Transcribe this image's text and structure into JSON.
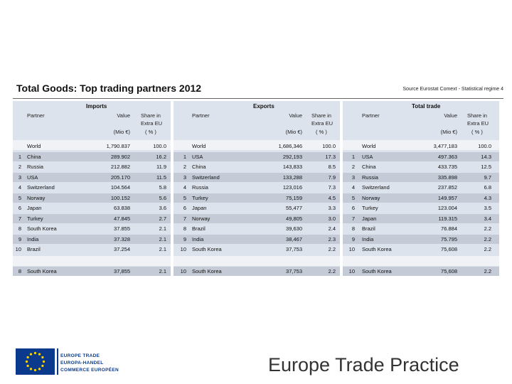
{
  "title": "Total Goods: Top trading partners 2012",
  "source": "Source Eurostat Comext - Statistical regime 4",
  "imports": {
    "heading": "Imports",
    "col_partner": "Partner",
    "col_value": "Value",
    "col_value_unit": "(Mio €)",
    "col_share_1": "Share in",
    "col_share_2": "Extra EU",
    "col_share_unit": "( % )",
    "world": {
      "rank": "",
      "partner": "World",
      "value": "1,790.837",
      "share": "100.0"
    },
    "rows": [
      {
        "rank": "1",
        "partner": "China",
        "value": "289.902",
        "share": "16.2"
      },
      {
        "rank": "2",
        "partner": "Russia",
        "value": "212.882",
        "share": "11.9"
      },
      {
        "rank": "3",
        "partner": "USA",
        "value": "205.170",
        "share": "11.5"
      },
      {
        "rank": "4",
        "partner": "Switzerland",
        "value": "104.564",
        "share": "5.8"
      },
      {
        "rank": "5",
        "partner": "Norway",
        "value": "100.152",
        "share": "5.6"
      },
      {
        "rank": "6",
        "partner": "Japan",
        "value": "63.838",
        "share": "3.6"
      },
      {
        "rank": "7",
        "partner": "Turkey",
        "value": "47.845",
        "share": "2.7"
      },
      {
        "rank": "8",
        "partner": "South Korea",
        "value": "37.855",
        "share": "2.1"
      },
      {
        "rank": "9",
        "partner": "India",
        "value": "37.328",
        "share": "2.1"
      },
      {
        "rank": "10",
        "partner": "Brazil",
        "value": "37.254",
        "share": "2.1"
      }
    ],
    "extra": {
      "rank": "8",
      "partner": "South Korea",
      "value": "37,855",
      "share": "2.1"
    }
  },
  "exports": {
    "heading": "Exports",
    "col_partner": "Partner",
    "col_value": "Value",
    "col_value_unit": "(Mio €)",
    "col_share_1": "Share in",
    "col_share_2": "Extra EU",
    "col_share_unit": "( % )",
    "world": {
      "rank": "",
      "partner": "World",
      "value": "1,686,346",
      "share": "100.0"
    },
    "rows": [
      {
        "rank": "1",
        "partner": "USA",
        "value": "292,193",
        "share": "17.3"
      },
      {
        "rank": "2",
        "partner": "China",
        "value": "143,833",
        "share": "8.5"
      },
      {
        "rank": "3",
        "partner": "Switzerland",
        "value": "133,288",
        "share": "7.9"
      },
      {
        "rank": "4",
        "partner": "Russia",
        "value": "123,016",
        "share": "7.3"
      },
      {
        "rank": "5",
        "partner": "Turkey",
        "value": "75,159",
        "share": "4.5"
      },
      {
        "rank": "6",
        "partner": "Japan",
        "value": "55,477",
        "share": "3.3"
      },
      {
        "rank": "7",
        "partner": "Norway",
        "value": "49,805",
        "share": "3.0"
      },
      {
        "rank": "8",
        "partner": "Brazil",
        "value": "39,630",
        "share": "2.4"
      },
      {
        "rank": "9",
        "partner": "India",
        "value": "38,467",
        "share": "2.3"
      },
      {
        "rank": "10",
        "partner": "South Korea",
        "value": "37,753",
        "share": "2.2"
      }
    ],
    "extra": {
      "rank": "10",
      "partner": "South Korea",
      "value": "37,753",
      "share": "2.2"
    }
  },
  "total": {
    "heading": "Total trade",
    "col_partner": "Partner",
    "col_value": "Value",
    "col_value_unit": "(Mio €)",
    "col_share_1": "Share in",
    "col_share_2": "Extra EU",
    "col_share_unit": "( % )",
    "world": {
      "rank": "",
      "partner": "World",
      "value": "3,477,183",
      "share": "100.0"
    },
    "rows": [
      {
        "rank": "1",
        "partner": "USA",
        "value": "497.363",
        "share": "14.3"
      },
      {
        "rank": "2",
        "partner": "China",
        "value": "433.735",
        "share": "12.5"
      },
      {
        "rank": "3",
        "partner": "Russia",
        "value": "335.898",
        "share": "9.7"
      },
      {
        "rank": "4",
        "partner": "Switzerland",
        "value": "237.852",
        "share": "6.8"
      },
      {
        "rank": "5",
        "partner": "Norway",
        "value": "149.957",
        "share": "4.3"
      },
      {
        "rank": "6",
        "partner": "Turkey",
        "value": "123.004",
        "share": "3.5"
      },
      {
        "rank": "7",
        "partner": "Japan",
        "value": "119.315",
        "share": "3.4"
      },
      {
        "rank": "8",
        "partner": "Brazil",
        "value": "76.884",
        "share": "2.2"
      },
      {
        "rank": "9",
        "partner": "India",
        "value": "75.795",
        "share": "2.2"
      },
      {
        "rank": "10",
        "partner": "South Korea",
        "value": "75,608",
        "share": "2.2"
      }
    ],
    "extra": {
      "rank": "10",
      "partner": "South Korea",
      "value": "75,608",
      "share": "2.2"
    }
  },
  "logo": {
    "line1": "EUROPE TRADE",
    "line2": "EUROPA-HANDEL",
    "line3": "COMMERCE EUROPÉEN",
    "color": "#0b3a8c"
  },
  "brand": "Europe Trade Practice"
}
